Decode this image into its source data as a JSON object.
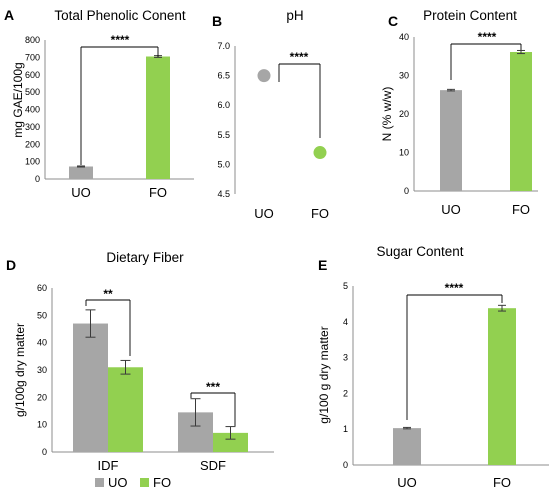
{
  "colors": {
    "UO": "#a6a6a6",
    "FO": "#92d050",
    "axis": "#8c8c8c",
    "error": "#3a3a3a"
  },
  "chart_data": [
    {
      "panel": "A",
      "type": "bar",
      "title": "Total Phenolic Conent",
      "ylabel": "mg GAE/100g",
      "xlabel": "",
      "categories": [
        "UO",
        "FO"
      ],
      "values": [
        72,
        705
      ],
      "errors": [
        3,
        5
      ],
      "ylim": [
        0,
        800
      ],
      "yticks": [
        "0",
        "100",
        "200",
        "300",
        "400",
        "500",
        "600",
        "700",
        "800"
      ],
      "grid": false,
      "significance": {
        "label": "****",
        "from": 0,
        "to": 1
      }
    },
    {
      "panel": "B",
      "type": "scatter",
      "title": "pH",
      "ylabel": "",
      "xlabel": "",
      "categories": [
        "UO",
        "FO"
      ],
      "values": [
        6.5,
        5.2
      ],
      "ylim": [
        4.5,
        7.0
      ],
      "yticks": [
        "4.5",
        "5.0",
        "5.5",
        "6.0",
        "6.5",
        "7.0"
      ],
      "grid": false,
      "significance": {
        "label": "****",
        "from": 0,
        "to": 1
      }
    },
    {
      "panel": "C",
      "type": "bar",
      "title": "Protein Content",
      "ylabel": "N (% w/w)",
      "xlabel": "",
      "categories": [
        "UO",
        "FO"
      ],
      "values": [
        26.2,
        36.1
      ],
      "errors": [
        0.2,
        0.4
      ],
      "ylim": [
        0,
        40
      ],
      "yticks": [
        "0",
        "10",
        "20",
        "30",
        "40"
      ],
      "grid": false,
      "significance": {
        "label": "****",
        "from": 0,
        "to": 1
      }
    },
    {
      "panel": "D",
      "type": "bar",
      "title": "Dietary Fiber",
      "ylabel": "g/100g dry matter",
      "xlabel": "",
      "categories": [
        "IDF",
        "SDF"
      ],
      "series": [
        {
          "name": "UO",
          "values": [
            47,
            14.5
          ],
          "errors": [
            5,
            5
          ]
        },
        {
          "name": "FO",
          "values": [
            31,
            7
          ],
          "errors": [
            2.5,
            2.3
          ]
        }
      ],
      "ylim": [
        0,
        60
      ],
      "yticks": [
        "0",
        "10",
        "20",
        "30",
        "40",
        "50",
        "60"
      ],
      "grid": false,
      "legend": "bottom",
      "significance": [
        {
          "label": "**",
          "category": 0
        },
        {
          "label": "***",
          "category": 1
        }
      ]
    },
    {
      "panel": "E",
      "type": "bar",
      "title": "Sugar Content",
      "ylabel": "g/100 g dry matter",
      "xlabel": "",
      "categories": [
        "UO",
        "FO"
      ],
      "values": [
        1.03,
        4.38
      ],
      "errors": [
        0.02,
        0.08
      ],
      "ylim": [
        0,
        5
      ],
      "yticks": [
        "0",
        "1",
        "2",
        "3",
        "4",
        "5"
      ],
      "grid": false,
      "significance": {
        "label": "****",
        "from": 0,
        "to": 1
      }
    }
  ]
}
